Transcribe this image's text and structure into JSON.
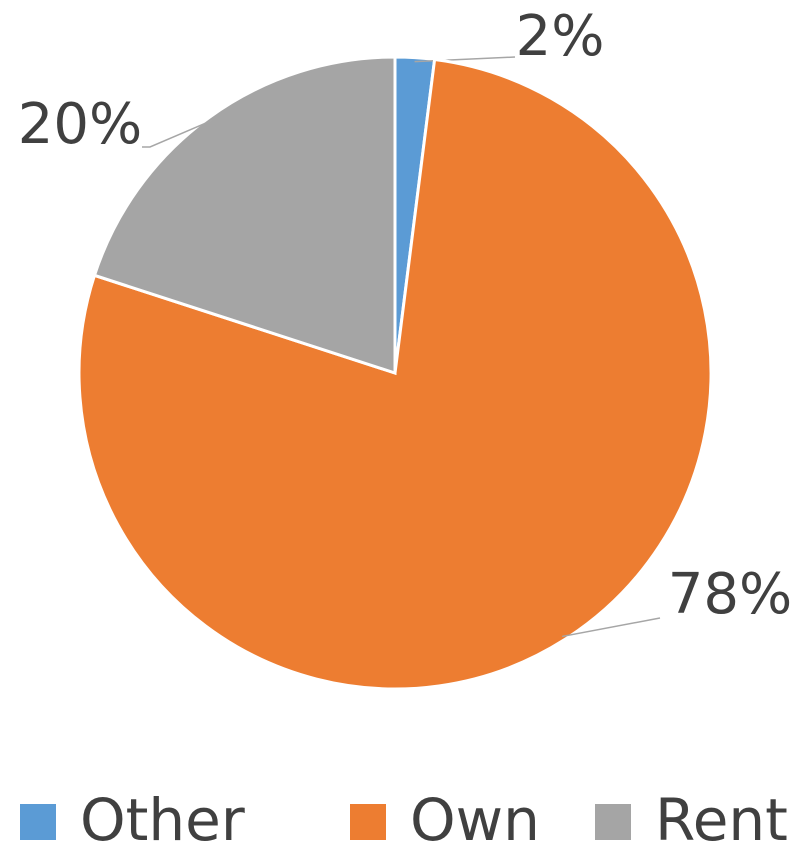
{
  "chart_data": {
    "type": "pie",
    "categories": [
      "Other",
      "Own",
      "Rent"
    ],
    "values": [
      2,
      78,
      20
    ],
    "value_labels": [
      "2%",
      "78%",
      "20%"
    ],
    "colors": [
      "#5b9bd5",
      "#ed7d31",
      "#a5a5a5"
    ],
    "legend": "bottom"
  }
}
